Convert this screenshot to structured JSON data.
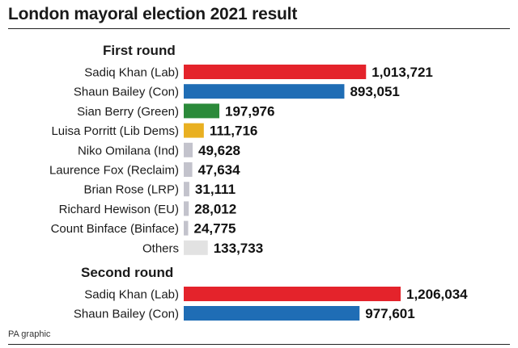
{
  "title": "London mayoral election 2021 result",
  "source": "PA graphic",
  "colors": {
    "Lab": "#e4232b",
    "Con": "#1f6db5",
    "Green": "#2b8a3a",
    "LibDem": "#e9b021",
    "Minor": "#c3c3cc",
    "Others": "#e2e2e2"
  },
  "chart_data": [
    {
      "type": "bar",
      "orientation": "horizontal",
      "title": "First round",
      "categories": [
        "Sadiq Khan (Lab)",
        "Shaun Bailey (Con)",
        "Sian Berry (Green)",
        "Luisa Porritt (Lib Dems)",
        "Niko Omilana (Ind)",
        "Laurence Fox (Reclaim)",
        "Brian Rose (LRP)",
        "Richard Hewison (EU)",
        "Count Binface (Binface)",
        "Others"
      ],
      "values": [
        1013721,
        893051,
        197976,
        111716,
        49628,
        47634,
        31111,
        28012,
        24775,
        133733
      ],
      "value_labels": [
        "1,013,721",
        "893,051",
        "197,976",
        "111,716",
        "49,628",
        "47,634",
        "31,111",
        "28,012",
        "24,775",
        "133,733"
      ],
      "bar_colors": [
        "Lab",
        "Con",
        "Green",
        "LibDem",
        "Minor",
        "Minor",
        "Minor",
        "Minor",
        "Minor",
        "Others"
      ],
      "xlim": [
        0,
        1206034
      ]
    },
    {
      "type": "bar",
      "orientation": "horizontal",
      "title": "Second round",
      "categories": [
        "Sadiq Khan (Lab)",
        "Shaun Bailey (Con)"
      ],
      "values": [
        1206034,
        977601
      ],
      "value_labels": [
        "1,206,034",
        "977,601"
      ],
      "bar_colors": [
        "Lab",
        "Con"
      ],
      "xlim": [
        0,
        1206034
      ]
    }
  ]
}
